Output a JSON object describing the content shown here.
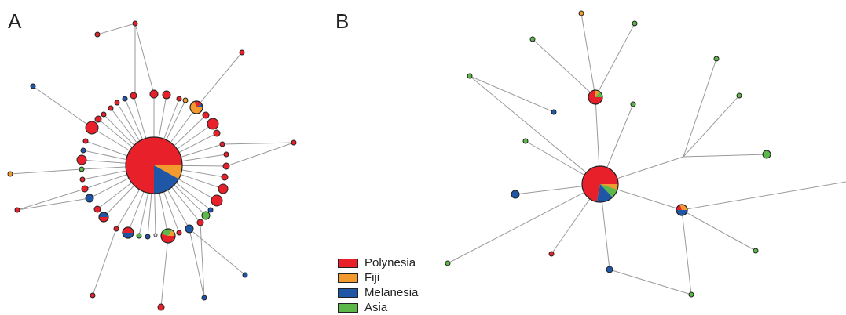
{
  "panels": [
    {
      "label": "A"
    },
    {
      "label": "B"
    }
  ],
  "colors": {
    "polynesia": "#e8202a",
    "fiji": "#f39a2e",
    "melanesia": "#1f57a6",
    "asia": "#5cb848"
  },
  "legend": [
    {
      "label": "Polynesia",
      "color": "#e8202a"
    },
    {
      "label": "Fiji",
      "color": "#f39a2e"
    },
    {
      "label": "Melanesia",
      "color": "#1f57a6"
    },
    {
      "label": "Asia",
      "color": "#5cb848"
    }
  ],
  "network_A": {
    "hub": {
      "composition": {
        "polynesia": 0.75,
        "fiji": 0.08,
        "melanesia": 0.17
      }
    },
    "nodes": [
      "polynesia",
      "polynesia",
      "polynesia",
      "polynesia",
      "polynesia",
      "polynesia",
      "polynesia",
      "polynesia",
      "polynesia",
      "polynesia",
      "polynesia",
      "polynesia",
      "polynesia",
      "polynesia",
      "polynesia",
      "polynesia",
      "polynesia",
      "polynesia",
      "polynesia",
      "polynesia",
      "polynesia",
      "polynesia",
      "polynesia",
      "polynesia",
      "polynesia",
      "polynesia",
      "polynesia",
      "polynesia",
      "polynesia",
      "polynesia",
      "polynesia",
      "polynesia",
      "polynesia",
      "polynesia",
      "polynesia",
      "polynesia",
      "polynesia",
      "polynesia",
      "polynesia",
      "polynesia",
      "melanesia",
      "melanesia",
      "melanesia",
      "melanesia",
      "melanesia",
      "melanesia",
      "melanesia",
      "melanesia",
      "melanesia",
      "melanesia",
      "fiji",
      "fiji",
      "asia",
      "asia",
      "asia",
      "mixed",
      "mixed",
      "mixed",
      "mixed"
    ]
  },
  "network_B": {
    "hub": {
      "composition": {
        "polynesia": 0.72,
        "fiji": 0.05,
        "asia": 0.08,
        "melanesia": 0.15
      }
    }
  }
}
